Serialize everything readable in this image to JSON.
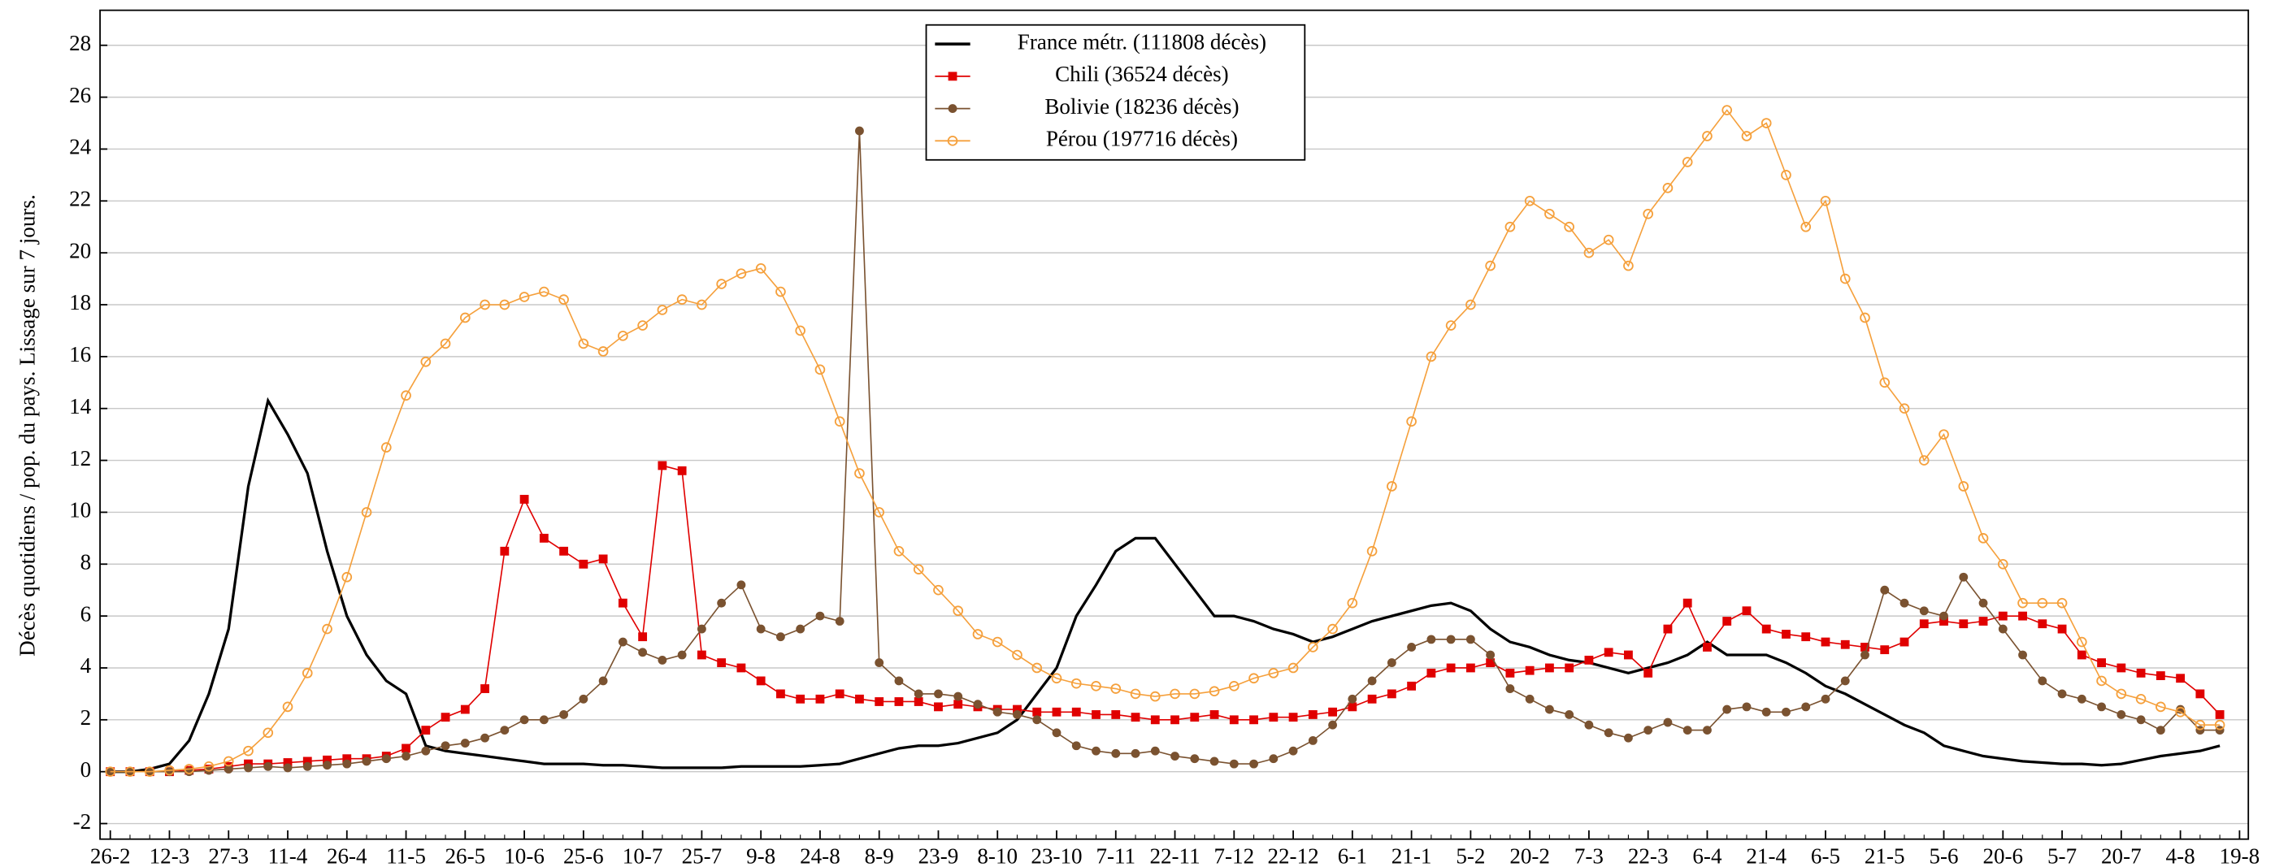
{
  "chart_data": {
    "type": "line",
    "y_label": "Décès quotidiens / pop. du pays. Lissage sur 7 jours.",
    "categories": [
      "26-2",
      null,
      null,
      "12-3",
      null,
      null,
      "27-3",
      null,
      null,
      "11-4",
      null,
      null,
      "26-4",
      null,
      null,
      "11-5",
      null,
      null,
      "26-5",
      null,
      null,
      "10-6",
      null,
      null,
      "25-6",
      null,
      null,
      "10-7",
      null,
      null,
      "25-7",
      null,
      null,
      "9-8",
      null,
      null,
      "24-8",
      null,
      null,
      "8-9",
      null,
      null,
      "23-9",
      null,
      null,
      "8-10",
      null,
      null,
      "23-10",
      null,
      null,
      "7-11",
      null,
      null,
      "22-11",
      null,
      null,
      "7-12",
      null,
      null,
      "22-12",
      null,
      null,
      "6-1",
      null,
      null,
      "21-1",
      null,
      null,
      "5-2",
      null,
      null,
      "20-2",
      null,
      null,
      "7-3",
      null,
      null,
      "22-3",
      null,
      null,
      "6-4",
      null,
      null,
      "21-4",
      null,
      null,
      "6-5",
      null,
      null,
      "21-5",
      null,
      null,
      "5-6",
      null,
      null,
      "20-6",
      null,
      null,
      "5-7",
      null,
      null,
      "20-7",
      null,
      null,
      "4-8",
      null,
      null,
      "19-8"
    ],
    "series": [
      {
        "name": "France métr. (111808 décès)",
        "color": "#000000",
        "marker": "none",
        "values": [
          0,
          0,
          0.1,
          0.3,
          1.2,
          3,
          5.5,
          11,
          14.3,
          13,
          11.5,
          8.5,
          6,
          4.5,
          3.5,
          3,
          1,
          0.8,
          0.7,
          0.6,
          0.5,
          0.4,
          0.3,
          0.3,
          0.3,
          0.25,
          0.25,
          0.2,
          0.15,
          0.15,
          0.15,
          0.15,
          0.2,
          0.2,
          0.2,
          0.2,
          0.25,
          0.3,
          0.5,
          0.7,
          0.9,
          1,
          1,
          1.1,
          1.3,
          1.5,
          2,
          3,
          4,
          6,
          7.2,
          8.5,
          9,
          9,
          8,
          7,
          6,
          6,
          5.8,
          5.5,
          5.3,
          5,
          5.2,
          5.5,
          5.8,
          6,
          6.2,
          6.4,
          6.5,
          6.2,
          5.5,
          5,
          4.8,
          4.5,
          4.3,
          4.2,
          4,
          3.8,
          4,
          4.2,
          4.5,
          5,
          4.5,
          4.5,
          4.5,
          4.2,
          3.8,
          3.3,
          3,
          2.6,
          2.2,
          1.8,
          1.5,
          1,
          0.8,
          0.6,
          0.5,
          0.4,
          0.35,
          0.3,
          0.3,
          0.25,
          0.3,
          0.45,
          0.6,
          0.7,
          0.8,
          1,
          null
        ]
      },
      {
        "name": "Chili (36524 décès)",
        "color": "#e00000",
        "marker": "square",
        "values": [
          0,
          0,
          0,
          0,
          0.05,
          0.1,
          0.2,
          0.3,
          0.3,
          0.35,
          0.4,
          0.45,
          0.5,
          0.5,
          0.6,
          0.9,
          1.6,
          2.1,
          2.4,
          3.2,
          8.5,
          10.5,
          9,
          8.5,
          8,
          8.2,
          6.5,
          5.2,
          11.8,
          11.6,
          4.5,
          4.2,
          4,
          3.5,
          3,
          2.8,
          2.8,
          3,
          2.8,
          2.7,
          2.7,
          2.7,
          2.5,
          2.6,
          2.5,
          2.4,
          2.4,
          2.3,
          2.3,
          2.3,
          2.2,
          2.2,
          2.1,
          2,
          2,
          2.1,
          2.2,
          2,
          2,
          2.1,
          2.1,
          2.2,
          2.3,
          2.5,
          2.8,
          3,
          3.3,
          3.8,
          4,
          4,
          4.2,
          3.8,
          3.9,
          4,
          4,
          4.3,
          4.6,
          4.5,
          3.8,
          5.5,
          6.5,
          4.8,
          5.8,
          6.2,
          5.5,
          5.3,
          5.2,
          5,
          4.9,
          4.8,
          4.7,
          5,
          5.7,
          5.8,
          5.7,
          5.8,
          6,
          6,
          5.7,
          5.5,
          4.5,
          4.2,
          4,
          3.8,
          3.7,
          3.6,
          3,
          2.2,
          null
        ]
      },
      {
        "name": "Bolivie (18236 décès)",
        "color": "#7a5230",
        "marker": "circle",
        "values": [
          0,
          0,
          0,
          0,
          0,
          0.05,
          0.1,
          0.15,
          0.2,
          0.15,
          0.2,
          0.25,
          0.3,
          0.4,
          0.5,
          0.6,
          0.8,
          1,
          1.1,
          1.3,
          1.6,
          2,
          2,
          2.2,
          2.8,
          3.5,
          5,
          4.6,
          4.3,
          4.5,
          5.5,
          6.5,
          7.2,
          5.5,
          5.2,
          5.5,
          6,
          5.8,
          24.7,
          4.2,
          3.5,
          3,
          3,
          2.9,
          2.6,
          2.3,
          2.2,
          2,
          1.5,
          1,
          0.8,
          0.7,
          0.7,
          0.8,
          0.6,
          0.5,
          0.4,
          0.3,
          0.3,
          0.5,
          0.8,
          1.2,
          1.8,
          2.8,
          3.5,
          4.2,
          4.8,
          5.1,
          5.1,
          5.1,
          4.5,
          3.2,
          2.8,
          2.4,
          2.2,
          1.8,
          1.5,
          1.3,
          1.6,
          1.9,
          1.6,
          1.6,
          2.4,
          2.5,
          2.3,
          2.3,
          2.5,
          2.8,
          3.5,
          4.5,
          7,
          6.5,
          6.2,
          6,
          7.5,
          6.5,
          5.5,
          4.5,
          3.5,
          3,
          2.8,
          2.5,
          2.2,
          2,
          1.6,
          2.4,
          1.6,
          1.6,
          null
        ]
      },
      {
        "name": "Pérou (197716 décès)",
        "color": "#f5a03c",
        "marker": "open-circle",
        "values": [
          0,
          0,
          0,
          0.05,
          0.1,
          0.2,
          0.4,
          0.8,
          1.5,
          2.5,
          3.8,
          5.5,
          7.5,
          10,
          12.5,
          14.5,
          15.8,
          16.5,
          17.5,
          18,
          18,
          18.3,
          18.5,
          18.2,
          16.5,
          16.2,
          16.8,
          17.2,
          17.8,
          18.2,
          18,
          18.8,
          19.2,
          19.4,
          18.5,
          17,
          15.5,
          13.5,
          11.5,
          10,
          8.5,
          7.8,
          7,
          6.2,
          5.3,
          5,
          4.5,
          4,
          3.6,
          3.4,
          3.3,
          3.2,
          3,
          2.9,
          3,
          3,
          3.1,
          3.3,
          3.6,
          3.8,
          4,
          4.8,
          5.5,
          6.5,
          8.5,
          11,
          13.5,
          16,
          17.2,
          18,
          19.5,
          21,
          22,
          21.5,
          21,
          20,
          20.5,
          19.5,
          21.5,
          22.5,
          23.5,
          24.5,
          25.5,
          24.5,
          25,
          23,
          21,
          22,
          19,
          17.5,
          15,
          14,
          12,
          13,
          11,
          9,
          8,
          6.5,
          6.5,
          6.5,
          5,
          3.5,
          3,
          2.8,
          2.5,
          2.3,
          1.8,
          1.8,
          null
        ]
      }
    ],
    "ylim": [
      -2.6,
      29.35
    ],
    "yticks": [
      -2,
      0,
      2,
      4,
      6,
      8,
      10,
      12,
      14,
      16,
      18,
      20,
      22,
      24,
      26,
      28
    ],
    "grid": true,
    "legend": "upper center"
  }
}
